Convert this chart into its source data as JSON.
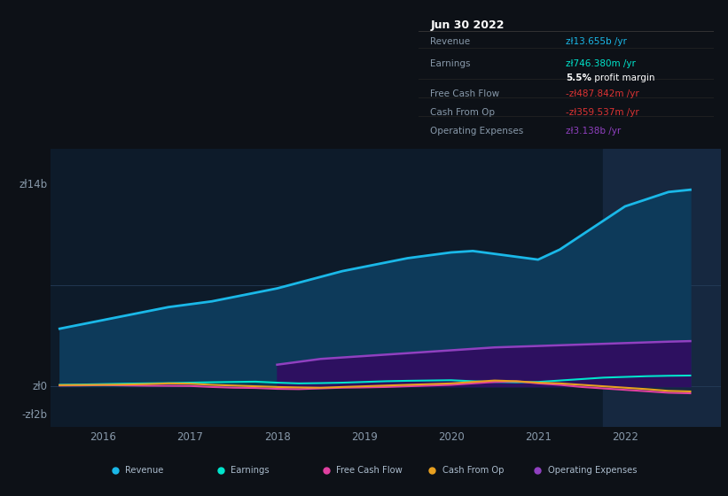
{
  "bg_color": "#0d1117",
  "plot_bg_color": "#0d1b2a",
  "grid_color": "#263d5a",
  "text_color": "#8899aa",
  "title_color": "#ffffff",
  "years": [
    2015.5,
    2015.75,
    2016.0,
    2016.25,
    2016.5,
    2016.75,
    2017.0,
    2017.25,
    2017.5,
    2017.75,
    2018.0,
    2018.25,
    2018.5,
    2018.75,
    2019.0,
    2019.25,
    2019.5,
    2019.75,
    2020.0,
    2020.25,
    2020.5,
    2020.75,
    2021.0,
    2021.25,
    2021.5,
    2021.75,
    2022.0,
    2022.25,
    2022.5,
    2022.75
  ],
  "revenue": [
    4.0,
    4.3,
    4.6,
    4.9,
    5.2,
    5.5,
    5.7,
    5.9,
    6.2,
    6.5,
    6.8,
    7.2,
    7.6,
    8.0,
    8.3,
    8.6,
    8.9,
    9.1,
    9.3,
    9.4,
    9.2,
    9.0,
    8.8,
    9.5,
    10.5,
    11.5,
    12.5,
    13.0,
    13.5,
    13.655
  ],
  "earnings": [
    0.1,
    0.12,
    0.15,
    0.18,
    0.2,
    0.22,
    0.25,
    0.28,
    0.3,
    0.32,
    0.25,
    0.2,
    0.22,
    0.25,
    0.3,
    0.35,
    0.38,
    0.4,
    0.42,
    0.35,
    0.3,
    0.28,
    0.3,
    0.4,
    0.5,
    0.6,
    0.65,
    0.7,
    0.73,
    0.746
  ],
  "free_cash_flow": [
    0.05,
    0.06,
    0.08,
    0.06,
    0.04,
    0.03,
    0.02,
    -0.05,
    -0.1,
    -0.12,
    -0.18,
    -0.2,
    -0.15,
    -0.1,
    -0.08,
    -0.05,
    0.0,
    0.05,
    0.1,
    0.2,
    0.3,
    0.35,
    0.2,
    0.1,
    -0.05,
    -0.15,
    -0.25,
    -0.35,
    -0.45,
    -0.488
  ],
  "cash_from_op": [
    0.08,
    0.09,
    0.1,
    0.12,
    0.15,
    0.2,
    0.18,
    0.1,
    0.05,
    0.0,
    -0.05,
    -0.08,
    -0.1,
    -0.05,
    0.0,
    0.05,
    0.1,
    0.15,
    0.2,
    0.3,
    0.4,
    0.35,
    0.25,
    0.2,
    0.1,
    0.0,
    -0.1,
    -0.2,
    -0.32,
    -0.36
  ],
  "op_expenses": [
    0.0,
    0.0,
    0.0,
    0.0,
    0.0,
    0.0,
    0.0,
    0.0,
    0.0,
    0.0,
    1.5,
    1.7,
    1.9,
    2.0,
    2.1,
    2.2,
    2.3,
    2.4,
    2.5,
    2.6,
    2.7,
    2.75,
    2.8,
    2.85,
    2.9,
    2.95,
    3.0,
    3.05,
    3.1,
    3.138
  ],
  "revenue_color": "#1ab8e8",
  "earnings_color": "#00e5cc",
  "fcf_color": "#e040a0",
  "cash_op_color": "#e8a020",
  "op_exp_color": "#9040c0",
  "revenue_fill": "#0d3a5a",
  "op_exp_fill": "#2d1060",
  "highlight_start": 2021.75,
  "highlight_color": "#162840",
  "xlim": [
    2015.4,
    2023.1
  ],
  "ylim": [
    -2.8,
    16.5
  ],
  "tooltip_date": "Jun 30 2022",
  "tooltip_data": [
    [
      "Revenue",
      "zł13.655b /yr",
      "#1ab8e8",
      false
    ],
    [
      "Earnings",
      "zł746.380m /yr",
      "#00e5cc",
      false
    ],
    [
      "",
      "5.5% profit margin",
      "#cccccc",
      true
    ],
    [
      "Free Cash Flow",
      "-zł487.842m /yr",
      "#dd3333",
      false
    ],
    [
      "Cash From Op",
      "-zł359.537m /yr",
      "#dd3333",
      false
    ],
    [
      "Operating Expenses",
      "zł3.138b /yr",
      "#9040c0",
      false
    ]
  ],
  "legend_items": [
    [
      "Revenue",
      "#1ab8e8"
    ],
    [
      "Earnings",
      "#00e5cc"
    ],
    [
      "Free Cash Flow",
      "#e040a0"
    ],
    [
      "Cash From Op",
      "#e8a020"
    ],
    [
      "Operating Expenses",
      "#9040c0"
    ]
  ],
  "xtick_years": [
    2016,
    2017,
    2018,
    2019,
    2020,
    2021,
    2022
  ]
}
